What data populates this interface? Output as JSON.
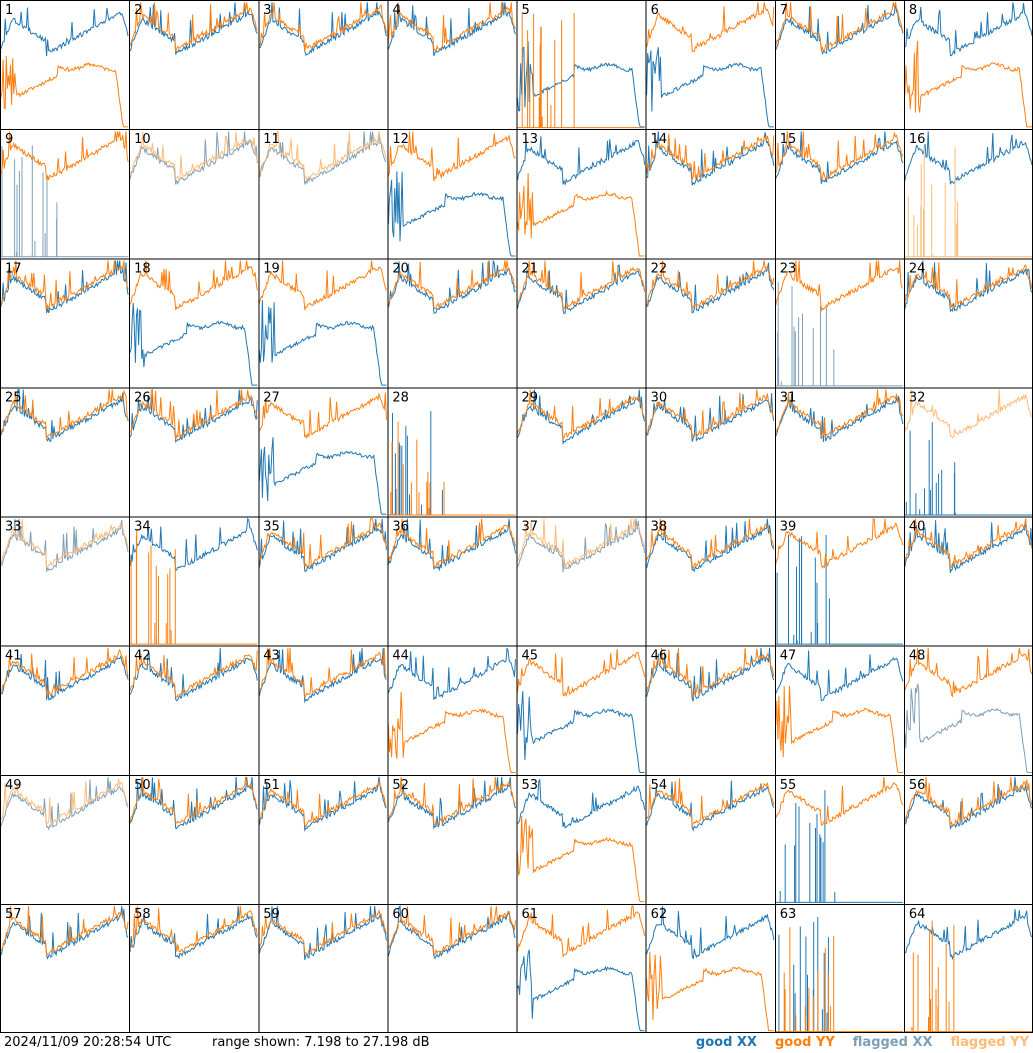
{
  "footer": {
    "timestamp": "2024/11/09 20:28:54 UTC",
    "range_text": "range shown: 7.198 to 27.198 dB"
  },
  "legend": [
    {
      "label": "good XX",
      "color": "#1f77b4"
    },
    {
      "label": "good YY",
      "color": "#ff7f0e"
    },
    {
      "label": "flagged XX",
      "color": "#7f9fb8"
    },
    {
      "label": "flagged YY",
      "color": "#ffbb78"
    }
  ],
  "chart_data": {
    "type": "line",
    "grid": "8x8 small multiples",
    "ylim": [
      7.198,
      27.198
    ],
    "y_unit": "dB",
    "panel_labels": [
      "1",
      "2",
      "3",
      "4",
      "5",
      "6",
      "7",
      "8",
      "9",
      "10",
      "11",
      "12",
      "13",
      "14",
      "15",
      "16",
      "17",
      "18",
      "19",
      "20",
      "21",
      "22",
      "23",
      "24",
      "25",
      "26",
      "27",
      "28",
      "29",
      "30",
      "31",
      "32",
      "33",
      "34",
      "35",
      "36",
      "37",
      "38",
      "39",
      "40",
      "41",
      "42",
      "43",
      "44",
      "45",
      "46",
      "47",
      "48",
      "49",
      "50",
      "51",
      "52",
      "53",
      "54",
      "55",
      "56",
      "57",
      "58",
      "59",
      "60",
      "61",
      "62",
      "63",
      "64"
    ],
    "series_colors": {
      "good_xx": "#1f77b4",
      "good_yy": "#ff7f0e",
      "flagged_xx": "#7f9fb8",
      "flagged_yy": "#ffbb78"
    },
    "panels": [
      {
        "xx": "n",
        "yy": "d",
        "flag_xx": 0,
        "flag_yy": 0
      },
      {
        "xx": "n",
        "yy": "n",
        "flag_xx": 0,
        "flag_yy": 0
      },
      {
        "xx": "n",
        "yy": "n",
        "flag_xx": 0,
        "flag_yy": 0
      },
      {
        "xx": "n",
        "yy": "n",
        "flag_xx": 0,
        "flag_yy": 0
      },
      {
        "xx": "d",
        "yy": "z",
        "flag_xx": 0,
        "flag_yy": 0
      },
      {
        "xx": "d",
        "yy": "n",
        "flag_xx": 0,
        "flag_yy": 0
      },
      {
        "xx": "n",
        "yy": "n",
        "flag_xx": 0,
        "flag_yy": 0
      },
      {
        "xx": "n",
        "yy": "d",
        "flag_xx": 0,
        "flag_yy": 0
      },
      {
        "xx": "z",
        "yy": "n",
        "flag_xx": 1,
        "flag_yy": 0
      },
      {
        "xx": "n",
        "yy": "n",
        "flag_xx": 1,
        "flag_yy": 1
      },
      {
        "xx": "n",
        "yy": "n",
        "flag_xx": 1,
        "flag_yy": 1
      },
      {
        "xx": "d",
        "yy": "n",
        "flag_xx": 0,
        "flag_yy": 0
      },
      {
        "xx": "n",
        "yy": "d",
        "flag_xx": 0,
        "flag_yy": 0
      },
      {
        "xx": "n",
        "yy": "n",
        "flag_xx": 0,
        "flag_yy": 0
      },
      {
        "xx": "n",
        "yy": "n",
        "flag_xx": 0,
        "flag_yy": 0
      },
      {
        "xx": "n",
        "yy": "z",
        "flag_xx": 0,
        "flag_yy": 1
      },
      {
        "xx": "n",
        "yy": "n",
        "flag_xx": 0,
        "flag_yy": 0
      },
      {
        "xx": "d",
        "yy": "n",
        "flag_xx": 0,
        "flag_yy": 0
      },
      {
        "xx": "d",
        "yy": "n",
        "flag_xx": 0,
        "flag_yy": 0
      },
      {
        "xx": "n",
        "yy": "n",
        "flag_xx": 0,
        "flag_yy": 0
      },
      {
        "xx": "n",
        "yy": "n",
        "flag_xx": 0,
        "flag_yy": 0
      },
      {
        "xx": "n",
        "yy": "n",
        "flag_xx": 0,
        "flag_yy": 0
      },
      {
        "xx": "z",
        "yy": "n",
        "flag_xx": 1,
        "flag_yy": 0
      },
      {
        "xx": "n",
        "yy": "n",
        "flag_xx": 0,
        "flag_yy": 0
      },
      {
        "xx": "n",
        "yy": "n",
        "flag_xx": 0,
        "flag_yy": 0
      },
      {
        "xx": "n",
        "yy": "n",
        "flag_xx": 0,
        "flag_yy": 0
      },
      {
        "xx": "d",
        "yy": "n",
        "flag_xx": 0,
        "flag_yy": 0
      },
      {
        "xx": "z",
        "yy": "z",
        "flag_xx": 0,
        "flag_yy": 0
      },
      {
        "xx": "n",
        "yy": "n",
        "flag_xx": 0,
        "flag_yy": 0
      },
      {
        "xx": "n",
        "yy": "n",
        "flag_xx": 0,
        "flag_yy": 0
      },
      {
        "xx": "n",
        "yy": "n",
        "flag_xx": 0,
        "flag_yy": 0
      },
      {
        "xx": "z",
        "yy": "n",
        "flag_xx": 0,
        "flag_yy": 1
      },
      {
        "xx": "n",
        "yy": "n",
        "flag_xx": 1,
        "flag_yy": 1
      },
      {
        "xx": "n",
        "yy": "z",
        "flag_xx": 0,
        "flag_yy": 0
      },
      {
        "xx": "n",
        "yy": "n",
        "flag_xx": 0,
        "flag_yy": 0
      },
      {
        "xx": "n",
        "yy": "n",
        "flag_xx": 0,
        "flag_yy": 0
      },
      {
        "xx": "n",
        "yy": "n",
        "flag_xx": 1,
        "flag_yy": 1
      },
      {
        "xx": "n",
        "yy": "n",
        "flag_xx": 0,
        "flag_yy": 0
      },
      {
        "xx": "z",
        "yy": "n",
        "flag_xx": 0,
        "flag_yy": 0
      },
      {
        "xx": "n",
        "yy": "n",
        "flag_xx": 0,
        "flag_yy": 0
      },
      {
        "xx": "n",
        "yy": "n",
        "flag_xx": 0,
        "flag_yy": 0
      },
      {
        "xx": "n",
        "yy": "n",
        "flag_xx": 0,
        "flag_yy": 0
      },
      {
        "xx": "n",
        "yy": "n",
        "flag_xx": 0,
        "flag_yy": 0
      },
      {
        "xx": "n",
        "yy": "d",
        "flag_xx": 0,
        "flag_yy": 0
      },
      {
        "xx": "d",
        "yy": "n",
        "flag_xx": 0,
        "flag_yy": 0
      },
      {
        "xx": "n",
        "yy": "n",
        "flag_xx": 0,
        "flag_yy": 0
      },
      {
        "xx": "n",
        "yy": "d",
        "flag_xx": 0,
        "flag_yy": 0
      },
      {
        "xx": "d",
        "yy": "n",
        "flag_xx": 1,
        "flag_yy": 0
      },
      {
        "xx": "n",
        "yy": "n",
        "flag_xx": 1,
        "flag_yy": 1
      },
      {
        "xx": "n",
        "yy": "n",
        "flag_xx": 0,
        "flag_yy": 0
      },
      {
        "xx": "n",
        "yy": "n",
        "flag_xx": 0,
        "flag_yy": 0
      },
      {
        "xx": "n",
        "yy": "n",
        "flag_xx": 0,
        "flag_yy": 0
      },
      {
        "xx": "n",
        "yy": "d",
        "flag_xx": 0,
        "flag_yy": 0
      },
      {
        "xx": "n",
        "yy": "n",
        "flag_xx": 0,
        "flag_yy": 0
      },
      {
        "xx": "z",
        "yy": "n",
        "flag_xx": 0,
        "flag_yy": 0
      },
      {
        "xx": "n",
        "yy": "n",
        "flag_xx": 0,
        "flag_yy": 0
      },
      {
        "xx": "n",
        "yy": "n",
        "flag_xx": 0,
        "flag_yy": 0
      },
      {
        "xx": "n",
        "yy": "n",
        "flag_xx": 0,
        "flag_yy": 0
      },
      {
        "xx": "n",
        "yy": "n",
        "flag_xx": 0,
        "flag_yy": 0
      },
      {
        "xx": "n",
        "yy": "n",
        "flag_xx": 0,
        "flag_yy": 0
      },
      {
        "xx": "d",
        "yy": "n",
        "flag_xx": 0,
        "flag_yy": 0
      },
      {
        "xx": "n",
        "yy": "d",
        "flag_xx": 0,
        "flag_yy": 0
      },
      {
        "xx": "z",
        "yy": "z",
        "flag_xx": 0,
        "flag_yy": 0
      },
      {
        "xx": "n",
        "yy": "z",
        "flag_xx": 0,
        "flag_yy": 0
      }
    ]
  }
}
